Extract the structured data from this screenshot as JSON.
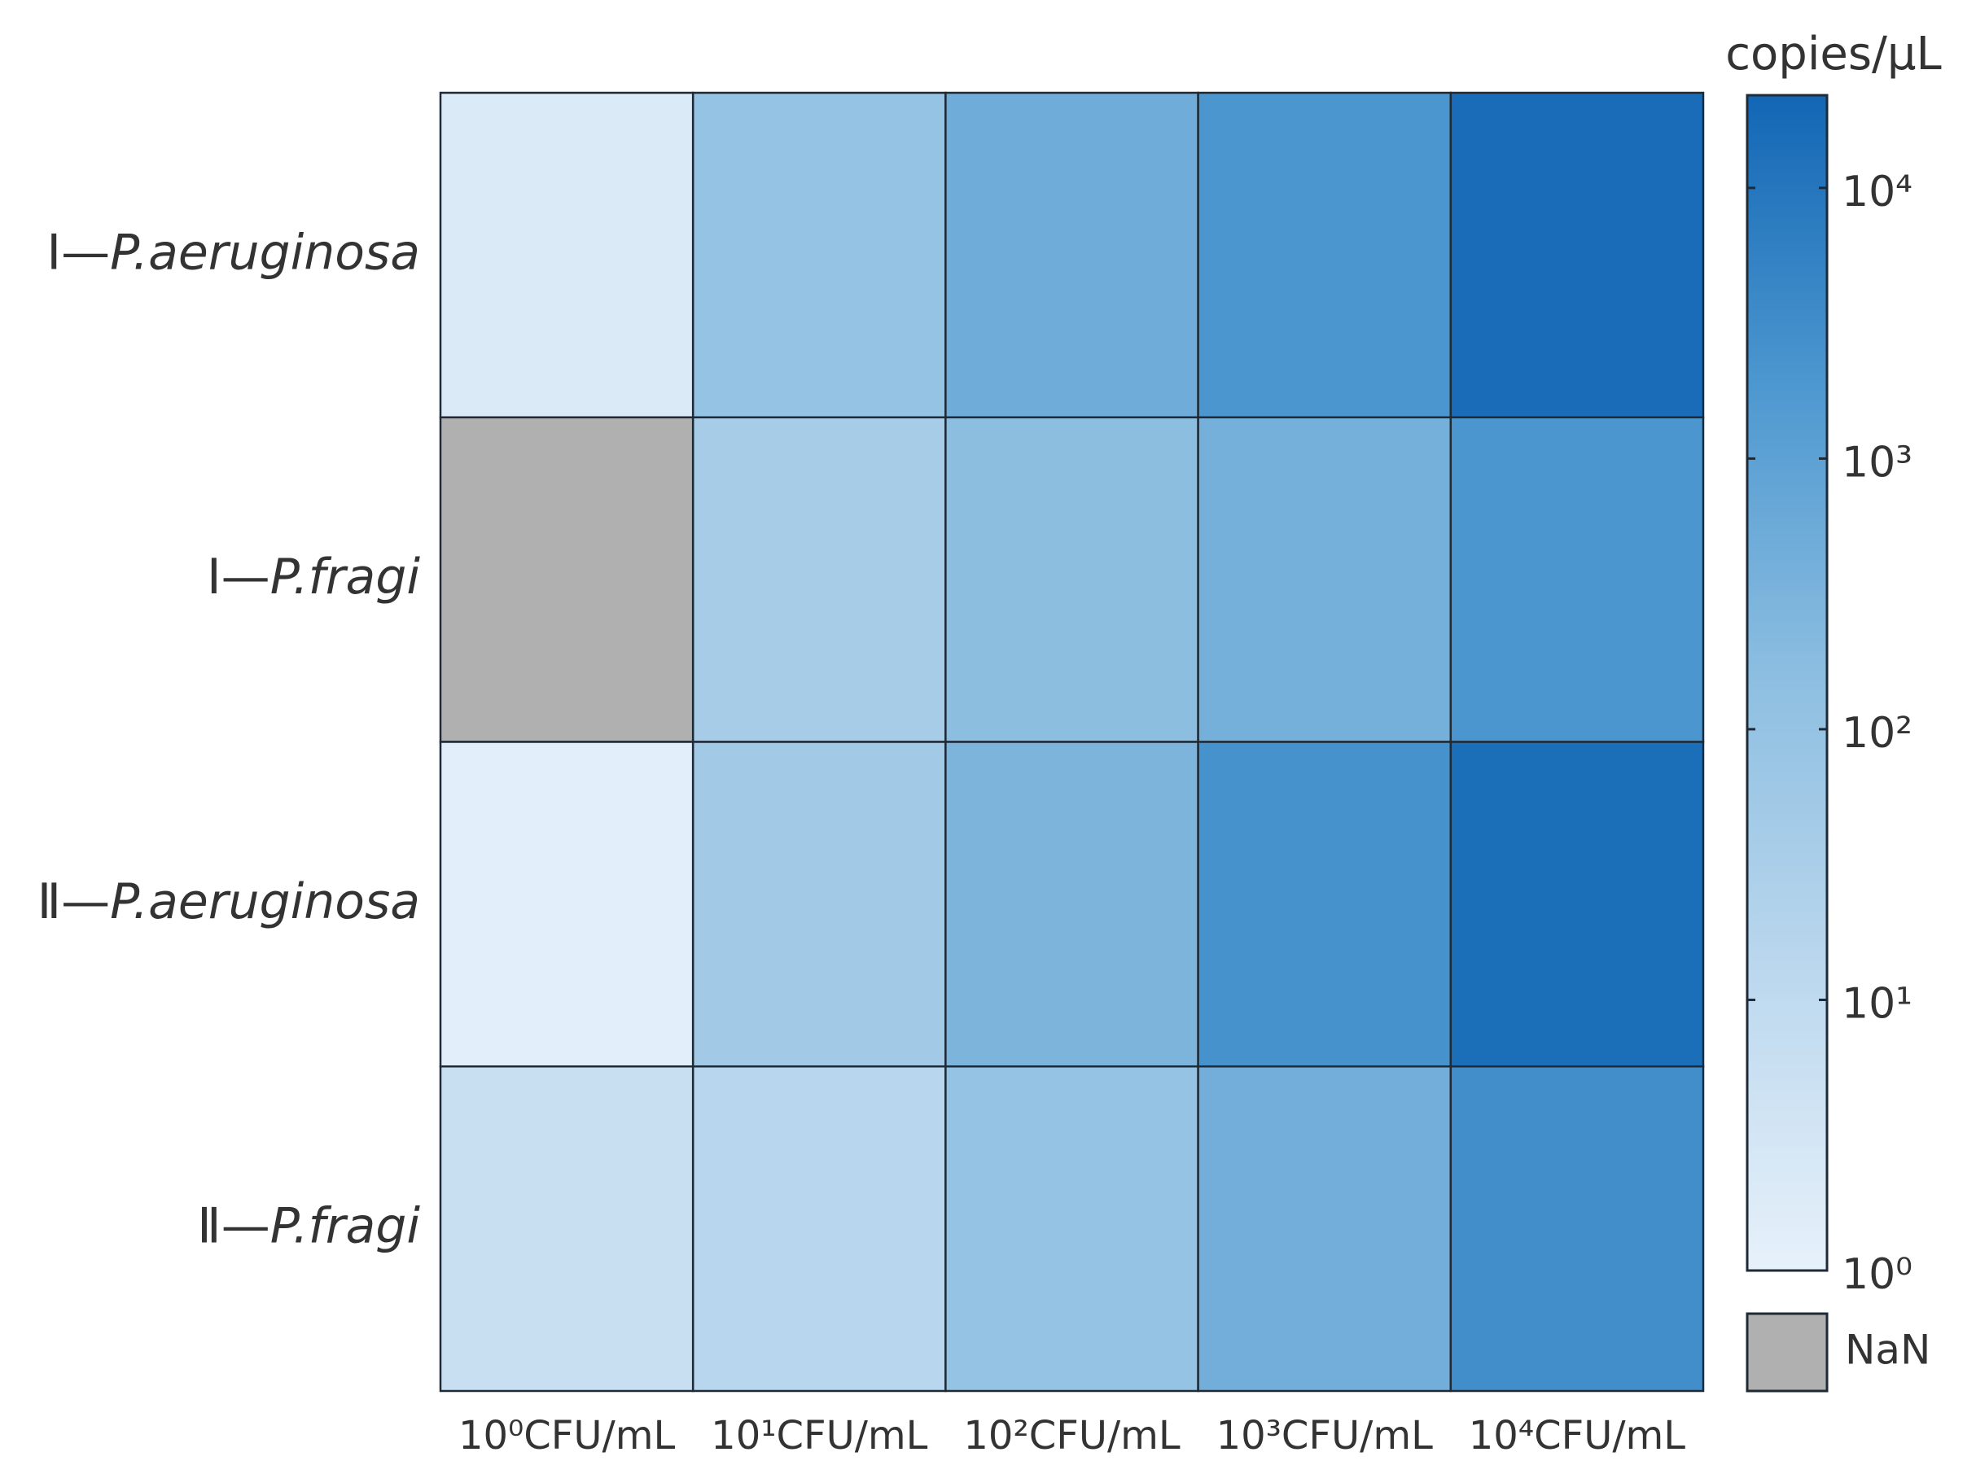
{
  "chart_data": {
    "type": "heatmap",
    "rows": [
      "Ⅰ—P.aeruginosa",
      "Ⅰ—P.fragi",
      "Ⅱ—P.aeruginosa",
      "Ⅱ—P.fragi"
    ],
    "categories": [
      "10⁰CFU/mL",
      "10¹CFU/mL",
      "10²CFU/mL",
      "10³CFU/mL",
      "10⁴CFU/mL"
    ],
    "values": [
      [
        2,
        100,
        500,
        2000,
        16000
      ],
      [
        null,
        40,
        160,
        400,
        2000
      ],
      [
        1.3,
        50,
        300,
        2500,
        15000
      ],
      [
        6,
        15,
        100,
        450,
        3000
      ]
    ],
    "colorbar_label": "copies/μL",
    "log_scale": true,
    "clim": [
      1,
      22000
    ],
    "cticks": [
      {
        "value": 1,
        "label": "10⁰"
      },
      {
        "value": 10,
        "label": "10¹"
      },
      {
        "value": 100,
        "label": "10²"
      },
      {
        "value": 1000,
        "label": "10³"
      },
      {
        "value": 10000,
        "label": "10⁴"
      }
    ],
    "colormap": [
      "#e7f1fa",
      "#bcd8ee",
      "#8ebfe1",
      "#4e98d0",
      "#1266b4"
    ],
    "nan_color": "#b0b0b0",
    "nan_label": "NaN"
  }
}
